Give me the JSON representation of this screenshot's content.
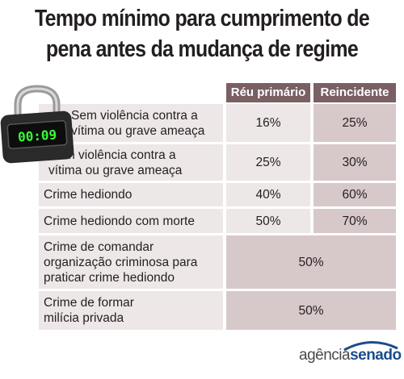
{
  "title": {
    "line1": "Tempo mínimo para cumprimento de",
    "line2": "pena antes da mudança de regime"
  },
  "table": {
    "headers": [
      "Réu primário",
      "Reincidente"
    ],
    "rows": [
      {
        "label": "Sem violência contra a vítima ou grave ameaça",
        "primario": "16%",
        "reincidente": "25%"
      },
      {
        "label": "Com violência contra a vítima ou grave ameaça",
        "primario": "25%",
        "reincidente": "30%"
      },
      {
        "label": "Crime hediondo",
        "primario": "40%",
        "reincidente": "60%"
      },
      {
        "label": "Crime hediondo com morte",
        "primario": "50%",
        "reincidente": "70%"
      },
      {
        "label": "Crime de comandar organização criminosa para praticar crime hediondo",
        "value": "50%"
      },
      {
        "label": "Crime de formar milícia privada",
        "value": "50%"
      }
    ]
  },
  "lock_display": "00:09",
  "logo": {
    "part1": "agência",
    "part2": "senado"
  }
}
